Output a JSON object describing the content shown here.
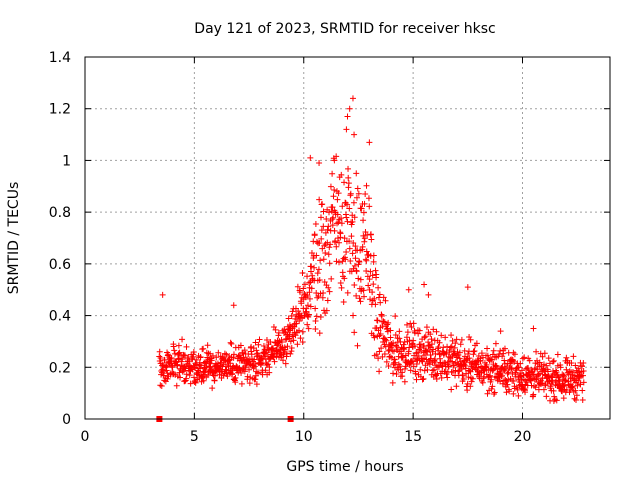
{
  "chart_data": {
    "type": "scatter",
    "title": "Day 121 of 2023, SRMTID for receiver hksc",
    "xlabel": "GPS time / hours",
    "ylabel": "SRMTID / TECUs",
    "xlim": [
      0,
      24
    ],
    "ylim": [
      0,
      1.4
    ],
    "x_ticks": [
      0,
      5,
      10,
      15,
      20
    ],
    "x_tick_labels": [
      "0",
      "5",
      "10",
      "15",
      "20"
    ],
    "y_ticks": [
      0,
      0.2,
      0.4,
      0.6,
      0.8,
      1.0,
      1.2,
      1.4
    ],
    "y_tick_labels": [
      "0",
      "0.2",
      "0.4",
      "0.6",
      "0.8",
      "1",
      "1.2",
      "1.4"
    ],
    "grid": true,
    "marker": "plus",
    "marker_color": "#ff0000",
    "zero_markers": {
      "x": [
        3.4,
        9.4
      ],
      "y": 0
    },
    "series": [
      {
        "name": "SRMTID",
        "trend": [
          [
            3.4,
            0.2
          ],
          [
            4.0,
            0.22
          ],
          [
            5.0,
            0.2
          ],
          [
            6.0,
            0.2
          ],
          [
            7.0,
            0.21
          ],
          [
            8.0,
            0.23
          ],
          [
            9.0,
            0.28
          ],
          [
            9.5,
            0.33
          ],
          [
            10.0,
            0.42
          ],
          [
            10.5,
            0.58
          ],
          [
            11.0,
            0.65
          ],
          [
            11.5,
            0.82
          ],
          [
            12.0,
            0.72
          ],
          [
            12.5,
            0.62
          ],
          [
            13.0,
            0.65
          ],
          [
            13.3,
            0.38
          ],
          [
            14.0,
            0.26
          ],
          [
            15.0,
            0.26
          ],
          [
            16.0,
            0.25
          ],
          [
            17.0,
            0.22
          ],
          [
            18.0,
            0.2
          ],
          [
            19.0,
            0.19
          ],
          [
            20.0,
            0.17
          ],
          [
            21.0,
            0.16
          ],
          [
            22.0,
            0.16
          ],
          [
            22.8,
            0.16
          ]
        ],
        "spread": [
          [
            3.4,
            0.07
          ],
          [
            9.0,
            0.07
          ],
          [
            10.0,
            0.15
          ],
          [
            11.0,
            0.25
          ],
          [
            12.0,
            0.3
          ],
          [
            13.0,
            0.25
          ],
          [
            13.5,
            0.12
          ],
          [
            15.0,
            0.09
          ],
          [
            18.0,
            0.08
          ],
          [
            22.8,
            0.07
          ]
        ],
        "highlights": [
          [
            3.55,
            0.48
          ],
          [
            12.25,
            1.24
          ],
          [
            12.1,
            1.2
          ],
          [
            12.0,
            1.17
          ],
          [
            11.95,
            1.12
          ],
          [
            12.3,
            1.1
          ],
          [
            13.0,
            1.07
          ],
          [
            10.3,
            1.01
          ],
          [
            10.7,
            0.99
          ],
          [
            11.4,
            1.0
          ],
          [
            12.4,
            0.95
          ],
          [
            6.8,
            0.44
          ],
          [
            17.5,
            0.51
          ],
          [
            15.5,
            0.52
          ],
          [
            15.7,
            0.48
          ],
          [
            14.8,
            0.5
          ],
          [
            20.5,
            0.35
          ],
          [
            19.0,
            0.34
          ]
        ]
      }
    ]
  }
}
